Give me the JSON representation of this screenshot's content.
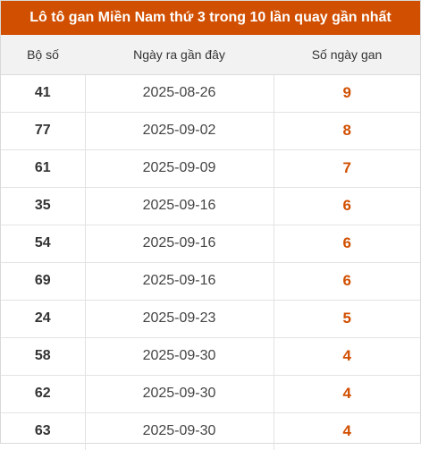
{
  "title": "Lô tô gan Miền Nam thứ 3 trong 10 lần quay gần nhất",
  "colors": {
    "accent": "#d14f00",
    "header_bg": "#f2f2f2"
  },
  "columns": [
    "Bộ số",
    "Ngày ra gần đây",
    "Số ngày gan"
  ],
  "rows": [
    {
      "number": "41",
      "date": "2025-08-26",
      "days": "9"
    },
    {
      "number": "77",
      "date": "2025-09-02",
      "days": "8"
    },
    {
      "number": "61",
      "date": "2025-09-09",
      "days": "7"
    },
    {
      "number": "35",
      "date": "2025-09-16",
      "days": "6"
    },
    {
      "number": "54",
      "date": "2025-09-16",
      "days": "6"
    },
    {
      "number": "69",
      "date": "2025-09-16",
      "days": "6"
    },
    {
      "number": "24",
      "date": "2025-09-23",
      "days": "5"
    },
    {
      "number": "58",
      "date": "2025-09-30",
      "days": "4"
    },
    {
      "number": "62",
      "date": "2025-09-30",
      "days": "4"
    },
    {
      "number": "63",
      "date": "2025-09-30",
      "days": "4"
    }
  ]
}
